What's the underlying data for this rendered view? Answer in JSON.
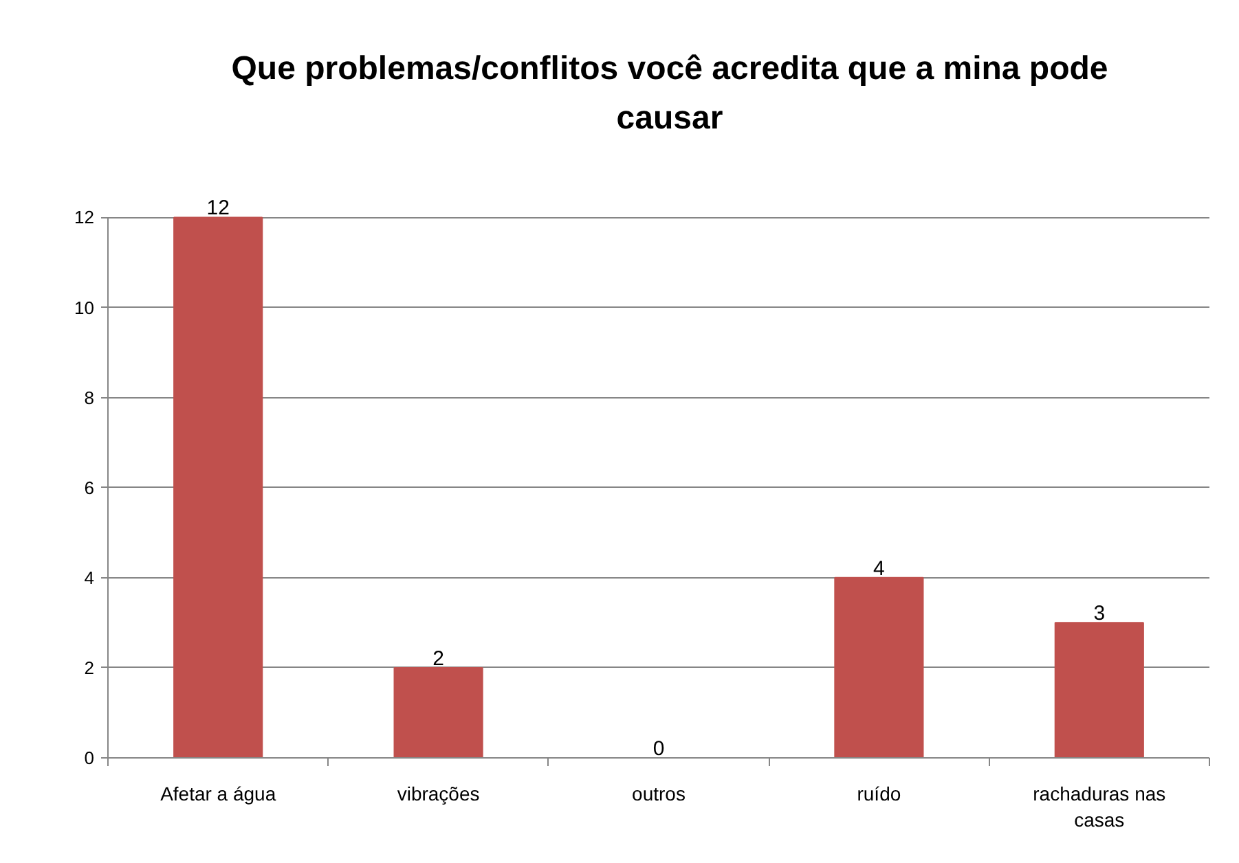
{
  "chart_data": {
    "type": "bar",
    "title": "Que problemas/conflitos você acredita que a mina pode causar",
    "categories": [
      "Afetar a água",
      "vibrações",
      "outros",
      "ruído",
      "rachaduras nas casas"
    ],
    "values": [
      12,
      2,
      0,
      4,
      3
    ],
    "color": "#c0504d",
    "ylim": [
      0,
      12
    ],
    "yticks": [
      0,
      2,
      4,
      6,
      8,
      10,
      12
    ],
    "grid": "y",
    "data_labels": true
  }
}
